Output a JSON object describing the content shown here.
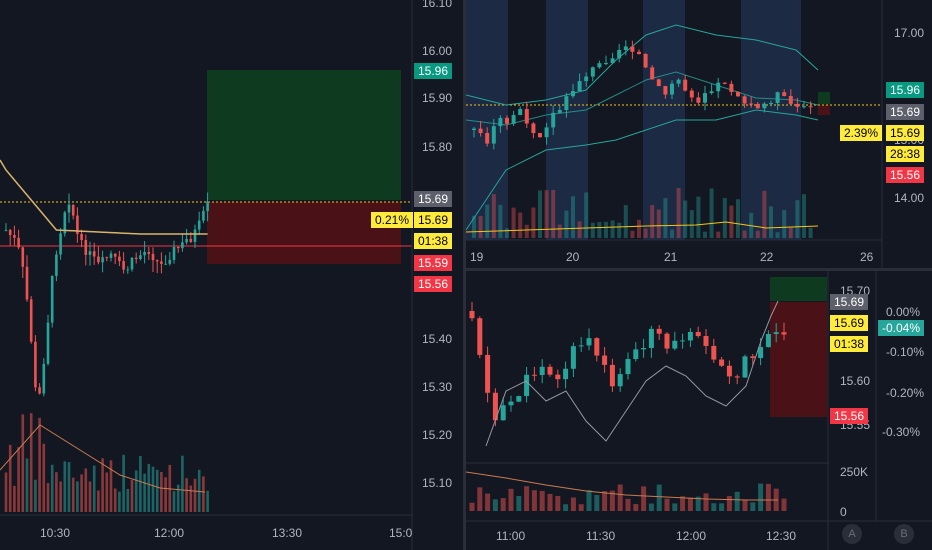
{
  "colors": {
    "bg": "#131722",
    "up": "#26a69a",
    "down": "#ef5350",
    "green_tag": "#089981",
    "red_tag": "#f23645",
    "yellow_tag": "#ffeb3b",
    "grey_tag": "#5d606b"
  },
  "left_panel": {
    "price_ticks": [
      "16.10",
      "16.00",
      "15.90",
      "15.80",
      "15.40",
      "15.30",
      "15.20",
      "15.10"
    ],
    "time_ticks": [
      "10:30",
      "12:00",
      "13:30",
      "15:0"
    ],
    "target_price": "15.96",
    "current_price": "15.69",
    "stop_price": "15.56",
    "low_price": "15.59",
    "percent_label": "0.21%",
    "countdown": "01:38"
  },
  "right_top_panel": {
    "price_ticks": [
      "17.00",
      "15.00",
      "14.00"
    ],
    "date_ticks": [
      "19",
      "20",
      "21",
      "22",
      "26"
    ],
    "target_price": "15.96",
    "current_price": "15.69",
    "percent_label": "2.39%",
    "percent_price": "15.69",
    "countdown": "28:38",
    "stop_price": "15.56"
  },
  "right_bottom_panel": {
    "price_ticks": [
      "15.70",
      "15.60",
      "15.55"
    ],
    "percent_ticks": [
      "0.00%",
      "-0.10%",
      "-0.20%",
      "-0.30%"
    ],
    "time_ticks": [
      "11:00",
      "11:30",
      "12:00",
      "12:30"
    ],
    "current_price": "15.69",
    "price_label": "15.69",
    "countdown": "01:38",
    "stop_price": "15.56",
    "percent_change": "-0.04%",
    "volume_ticks": [
      "250K",
      "0"
    ],
    "ab_buttons": [
      "A",
      "B"
    ]
  }
}
